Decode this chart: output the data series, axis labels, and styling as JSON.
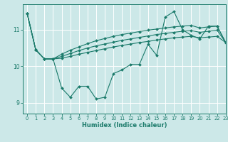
{
  "xlabel": "Humidex (Indice chaleur)",
  "background_color": "#cce8e8",
  "grid_color": "#ffffff",
  "line_color": "#1a7a6a",
  "xlim": [
    -0.5,
    23
  ],
  "ylim": [
    8.7,
    11.7
  ],
  "yticks": [
    9,
    10,
    11
  ],
  "xticks": [
    0,
    1,
    2,
    3,
    4,
    5,
    6,
    7,
    8,
    9,
    10,
    11,
    12,
    13,
    14,
    15,
    16,
    17,
    18,
    19,
    20,
    21,
    22,
    23
  ],
  "series1_y": [
    11.45,
    10.45,
    10.2,
    10.2,
    9.4,
    9.15,
    9.45,
    9.45,
    9.1,
    9.15,
    9.8,
    9.9,
    10.05,
    10.05,
    10.6,
    10.3,
    11.35,
    11.5,
    11.0,
    10.85,
    10.75,
    11.1,
    11.1,
    10.65
  ],
  "series2_y": [
    11.45,
    10.45,
    10.2,
    10.2,
    10.22,
    10.27,
    10.33,
    10.38,
    10.43,
    10.48,
    10.53,
    10.57,
    10.61,
    10.65,
    10.68,
    10.72,
    10.75,
    10.78,
    10.8,
    10.82,
    10.78,
    10.8,
    10.82,
    10.65
  ],
  "series3_y": [
    11.45,
    10.45,
    10.2,
    10.2,
    10.27,
    10.35,
    10.43,
    10.5,
    10.56,
    10.61,
    10.66,
    10.71,
    10.75,
    10.79,
    10.83,
    10.87,
    10.9,
    10.93,
    10.96,
    10.98,
    10.93,
    10.96,
    10.99,
    10.65
  ],
  "series4_y": [
    11.45,
    10.45,
    10.2,
    10.2,
    10.33,
    10.44,
    10.53,
    10.62,
    10.7,
    10.76,
    10.82,
    10.87,
    10.91,
    10.95,
    10.99,
    11.02,
    11.05,
    11.08,
    11.1,
    11.12,
    11.05,
    11.08,
    11.1,
    10.65
  ]
}
